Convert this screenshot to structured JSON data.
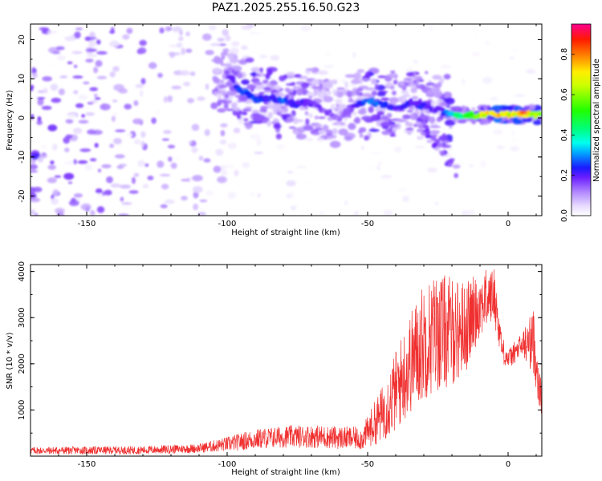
{
  "title": "PAZ1.2025.255.16.50.G23",
  "chart_data": [
    {
      "type": "heatmap",
      "xlabel": "Height of straight line (km)",
      "ylabel": "Frequency (Hz)",
      "xlim": [
        -170,
        12
      ],
      "ylim": [
        -25,
        24
      ],
      "xticks": [
        -150,
        -100,
        -50,
        0
      ],
      "yticks": [
        -20,
        -10,
        0,
        10,
        20
      ],
      "colorbar": {
        "label": "Normalized spectral amplitude",
        "range": [
          0,
          0.95
        ],
        "ticks": [
          0.0,
          0.2,
          0.4,
          0.6,
          0.8
        ]
      },
      "ridge": [
        {
          "x": -100,
          "y": 11,
          "amp": 0.2
        },
        {
          "x": -95,
          "y": 7,
          "amp": 0.28
        },
        {
          "x": -90,
          "y": 5,
          "amp": 0.3
        },
        {
          "x": -85,
          "y": 5,
          "amp": 0.25
        },
        {
          "x": -80,
          "y": 4.5,
          "amp": 0.3
        },
        {
          "x": -75,
          "y": 3.5,
          "amp": 0.25
        },
        {
          "x": -70,
          "y": 4,
          "amp": 0.2
        },
        {
          "x": -65,
          "y": 2,
          "amp": 0.18
        },
        {
          "x": -60,
          "y": 0,
          "amp": 0.15
        },
        {
          "x": -55,
          "y": 3,
          "amp": 0.2
        },
        {
          "x": -50,
          "y": 4.5,
          "amp": 0.3
        },
        {
          "x": -45,
          "y": 3.5,
          "amp": 0.3
        },
        {
          "x": -40,
          "y": 2,
          "amp": 0.25
        },
        {
          "x": -35,
          "y": 4,
          "amp": 0.25
        },
        {
          "x": -30,
          "y": 3,
          "amp": 0.25
        },
        {
          "x": -25,
          "y": 2,
          "amp": 0.2
        },
        {
          "x": -20,
          "y": 0.8,
          "amp": 0.38
        },
        {
          "x": -15,
          "y": 0.6,
          "amp": 0.55
        },
        {
          "x": -10,
          "y": 0.7,
          "amp": 0.7
        },
        {
          "x": -5,
          "y": 1.0,
          "amp": 0.85
        },
        {
          "x": 0,
          "y": 0.8,
          "amp": 0.75
        },
        {
          "x": 5,
          "y": 0.8,
          "amp": 0.85
        },
        {
          "x": 10,
          "y": 0.8,
          "amp": 0.75
        }
      ]
    },
    {
      "type": "line",
      "xlabel": "Height of straight line (km)",
      "ylabel": "SNR (10 * v/v)",
      "xlim": [
        -170,
        12
      ],
      "ylim": [
        0,
        4150
      ],
      "xticks": [
        -150,
        -100,
        -50,
        0
      ],
      "yticks": [
        1000,
        2000,
        3000,
        4000
      ],
      "series": [
        {
          "name": "SNR",
          "color": "#f03030",
          "envelope": [
            {
              "x": -170,
              "mean": 120,
              "spread": 80
            },
            {
              "x": -130,
              "mean": 130,
              "spread": 90
            },
            {
              "x": -110,
              "mean": 170,
              "spread": 100
            },
            {
              "x": -100,
              "mean": 260,
              "spread": 160
            },
            {
              "x": -90,
              "mean": 370,
              "spread": 220
            },
            {
              "x": -80,
              "mean": 420,
              "spread": 240
            },
            {
              "x": -70,
              "mean": 430,
              "spread": 250
            },
            {
              "x": -60,
              "mean": 400,
              "spread": 250
            },
            {
              "x": -52,
              "mean": 380,
              "spread": 250
            },
            {
              "x": -45,
              "mean": 900,
              "spread": 600
            },
            {
              "x": -40,
              "mean": 1400,
              "spread": 900
            },
            {
              "x": -35,
              "mean": 2000,
              "spread": 1100
            },
            {
              "x": -30,
              "mean": 2500,
              "spread": 1300
            },
            {
              "x": -25,
              "mean": 2700,
              "spread": 1300
            },
            {
              "x": -20,
              "mean": 2700,
              "spread": 1200
            },
            {
              "x": -15,
              "mean": 2800,
              "spread": 1000
            },
            {
              "x": -10,
              "mean": 3300,
              "spread": 700
            },
            {
              "x": -5,
              "mean": 3500,
              "spread": 600
            },
            {
              "x": -2,
              "mean": 2300,
              "spread": 300
            },
            {
              "x": 0,
              "mean": 2100,
              "spread": 200
            },
            {
              "x": 5,
              "mean": 2400,
              "spread": 300
            },
            {
              "x": 9,
              "mean": 2500,
              "spread": 700
            },
            {
              "x": 12,
              "mean": 1100,
              "spread": 400
            }
          ]
        }
      ]
    }
  ]
}
